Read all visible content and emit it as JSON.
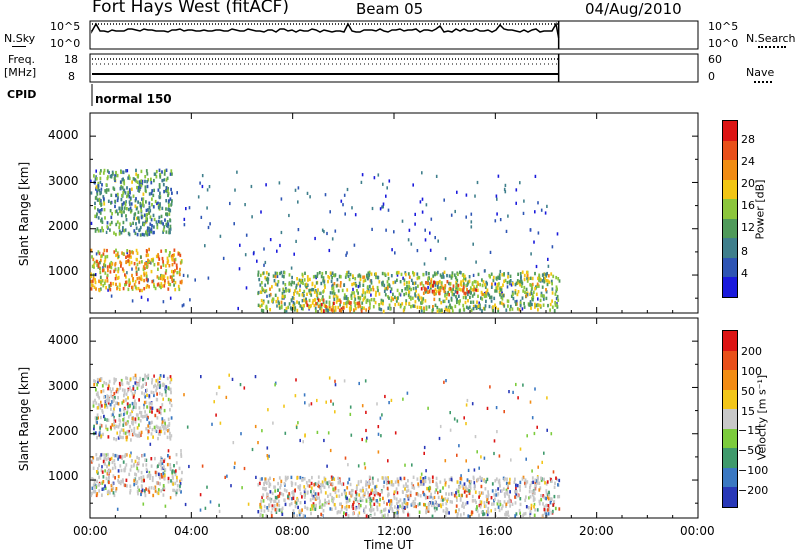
{
  "header": {
    "title": "Fort Hays West (fitACF)",
    "beam": "Beam 05",
    "date": "04/Aug/2010"
  },
  "strip_panels": {
    "nsky_label": "N.Sky",
    "nsky_ticks": [
      "10^5",
      "10^0"
    ],
    "nsearch_label": "N.Search",
    "nsearch_ticks": [
      "10^5",
      "10^0"
    ],
    "freq_label": "Freq.",
    "freq_unit": "[MHz]",
    "freq_ticks": [
      "18",
      "8"
    ],
    "nave_label": "Nave",
    "nave_ticks": [
      "60",
      "0"
    ],
    "cpid_label": "CPID",
    "cpid_value": "normal 150"
  },
  "x_axis": {
    "label": "Time UT",
    "ticks": [
      "00:00",
      "04:00",
      "08:00",
      "12:00",
      "16:00",
      "20:00",
      "00:00"
    ]
  },
  "power_panel": {
    "ylabel": "Slant Range [km]",
    "yticks": [
      "4000",
      "3000",
      "2000",
      "1000"
    ],
    "colorbar_label": "Power [dB]",
    "colorbar_ticks": [
      "28",
      "24",
      "20",
      "16",
      "12",
      "8",
      "4"
    ]
  },
  "velocity_panel": {
    "ylabel": "Slant Range [km]",
    "yticks": [
      "4000",
      "3000",
      "2000",
      "1000"
    ],
    "colorbar_label": "Velocity [m s⁻¹]",
    "colorbar_ticks": [
      "200",
      "100",
      "50",
      "15",
      "−15",
      "−50",
      "−100",
      "−200"
    ]
  },
  "colors": {
    "power_scale": [
      "#1a1adc",
      "#2e55b4",
      "#3f7f8c",
      "#4f9a5a",
      "#8cc63c",
      "#f2c614",
      "#f08c14",
      "#e8501a",
      "#dc1414"
    ],
    "velocity_scale": [
      "#2838b8",
      "#3a78c2",
      "#3f9a6c",
      "#7ccc3c",
      "#c8c8c8",
      "#f2c61a",
      "#f28c14",
      "#e8501a",
      "#dc1414"
    ]
  },
  "chart_data": [
    {
      "type": "heatmap",
      "title": "Power [dB]",
      "xlabel": "Time UT",
      "ylabel": "Slant Range [km]",
      "x_range_hours": [
        0,
        24
      ],
      "y_range_km": [
        180,
        4500
      ],
      "data_end_hour": 18.5,
      "color_range": [
        0,
        30
      ],
      "regions": [
        {
          "t": [
            0.0,
            3.6
          ],
          "range_km": [
            700,
            1600
          ],
          "value": 20
        },
        {
          "t": [
            0.1,
            3.2
          ],
          "range_km": [
            1900,
            3300
          ],
          "value": 10
        },
        {
          "t": [
            6.6,
            18.5
          ],
          "range_km": [
            250,
            1100
          ],
          "value": 14
        },
        {
          "t": [
            8.5,
            11.0
          ],
          "range_km": [
            250,
            500
          ],
          "value": 22
        },
        {
          "t": [
            13.0,
            15.5
          ],
          "range_km": [
            600,
            900
          ],
          "value": 22
        }
      ]
    },
    {
      "type": "heatmap",
      "title": "Velocity",
      "xlabel": "Time UT",
      "ylabel": "Slant Range [km]",
      "x_range_hours": [
        0,
        24
      ],
      "y_range_km": [
        180,
        4500
      ],
      "data_end_hour": 18.5,
      "color_range": [
        -250,
        250
      ],
      "regions": [
        {
          "t": [
            0.0,
            3.6
          ],
          "range_km": [
            700,
            1600
          ],
          "value": 0
        },
        {
          "t": [
            0.1,
            3.2
          ],
          "range_km": [
            1900,
            3300
          ],
          "value": -40
        },
        {
          "t": [
            6.6,
            18.5
          ],
          "range_km": [
            250,
            1100
          ],
          "value": 0
        }
      ]
    },
    {
      "type": "line",
      "title": "N.Sky",
      "x_range_hours": [
        0,
        18.5
      ],
      "note_level": "high, roughly constant with spikes"
    },
    {
      "type": "line",
      "title": "Freq.",
      "ylim": [
        8,
        18
      ],
      "x_range_hours": [
        0,
        18.5
      ]
    }
  ]
}
